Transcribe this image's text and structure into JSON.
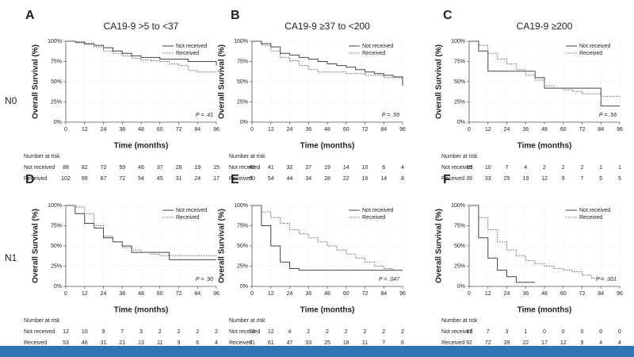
{
  "row_labels": [
    "N0",
    "N1"
  ],
  "chart_data": [
    {
      "type": "line",
      "step": true,
      "panel": "A",
      "title": "CA19-9 >5 to <37",
      "x_label": "Time (months)",
      "y_label": "Overall Survival (%)",
      "annotation": "P = .41",
      "grid": true,
      "legend": "upper right",
      "x": [
        0,
        6,
        12,
        18,
        24,
        30,
        36,
        42,
        48,
        54,
        60,
        66,
        72,
        78,
        84,
        90,
        96
      ],
      "series": [
        {
          "name": "Not received",
          "color": "#444444",
          "dash": "solid",
          "values": [
            100,
            99,
            97,
            95,
            92,
            88,
            85,
            82,
            80,
            80,
            78,
            78,
            78,
            75,
            75,
            75,
            70
          ]
        },
        {
          "name": "Received",
          "color": "#666666",
          "dash": "dotted",
          "values": [
            100,
            98,
            96,
            93,
            88,
            85,
            82,
            79,
            77,
            76,
            75,
            72,
            70,
            64,
            62,
            62,
            62
          ]
        }
      ],
      "xlim": [
        0,
        96
      ],
      "xticks": [
        0,
        12,
        24,
        36,
        48,
        60,
        72,
        84,
        96
      ],
      "ylim": [
        0,
        100
      ],
      "yticks": [
        {
          "value": 0,
          "label": "0%"
        },
        {
          "value": 25,
          "label": "25%"
        },
        {
          "value": 50,
          "label": "50%"
        },
        {
          "value": 75,
          "label": "75%"
        },
        {
          "value": 100,
          "label": "100%"
        }
      ],
      "risk_table": {
        "title": "Number at risk",
        "rows": [
          {
            "name": "Not received",
            "values": [
              88,
              82,
              72,
              59,
              46,
              37,
              28,
              19,
              15
            ]
          },
          {
            "name": "Received",
            "values": [
              102,
              99,
              87,
              72,
              54,
              45,
              31,
              24,
              17
            ]
          }
        ]
      }
    },
    {
      "type": "line",
      "step": true,
      "panel": "B",
      "title": "CA19-9 ≥37 to <200",
      "x_label": "Time (months)",
      "y_label": "Overall Survival (%)",
      "annotation": "P = .59",
      "grid": true,
      "legend": "upper right",
      "x": [
        0,
        6,
        12,
        18,
        24,
        30,
        36,
        42,
        48,
        54,
        60,
        66,
        72,
        78,
        84,
        90,
        96
      ],
      "series": [
        {
          "name": "Not received",
          "color": "#444444",
          "dash": "solid",
          "values": [
            100,
            97,
            93,
            85,
            83,
            80,
            78,
            75,
            72,
            70,
            68,
            65,
            62,
            60,
            58,
            56,
            45
          ]
        },
        {
          "name": "Received",
          "color": "#666666",
          "dash": "dotted",
          "values": [
            100,
            95,
            88,
            80,
            76,
            70,
            65,
            62,
            62,
            62,
            60,
            60,
            58,
            58,
            55,
            55,
            55
          ]
        }
      ],
      "xlim": [
        0,
        96
      ],
      "xticks": [
        0,
        12,
        24,
        36,
        48,
        60,
        72,
        84,
        96
      ],
      "ylim": [
        0,
        100
      ],
      "yticks": [
        {
          "value": 0,
          "label": "0%"
        },
        {
          "value": 25,
          "label": "25%"
        },
        {
          "value": 50,
          "label": "50%"
        },
        {
          "value": 75,
          "label": "75%"
        },
        {
          "value": 100,
          "label": "100%"
        }
      ],
      "risk_table": {
        "title": "Number at risk",
        "rows": [
          {
            "name": "Not received",
            "values": [
              45,
              41,
              32,
              27,
              19,
              14,
              10,
              6,
              4
            ]
          },
          {
            "name": "Received",
            "values": [
              60,
              54,
              44,
              34,
              28,
              22,
              16,
              14,
              8
            ]
          }
        ]
      }
    },
    {
      "type": "line",
      "step": true,
      "panel": "C",
      "title": "CA19-9 ≥200",
      "x_label": "Time (months)",
      "y_label": "Overall Survival (%)",
      "annotation": "P = .56",
      "grid": true,
      "legend": "upper right",
      "x": [
        0,
        6,
        12,
        18,
        24,
        30,
        36,
        42,
        48,
        54,
        60,
        66,
        72,
        78,
        84,
        90,
        96
      ],
      "series": [
        {
          "name": "Not received",
          "color": "#444444",
          "dash": "solid",
          "values": [
            100,
            88,
            63,
            63,
            63,
            63,
            63,
            55,
            42,
            42,
            42,
            42,
            42,
            42,
            20,
            20,
            20
          ]
        },
        {
          "name": "Received",
          "color": "#666666",
          "dash": "dotted",
          "values": [
            100,
            95,
            85,
            78,
            72,
            65,
            58,
            52,
            45,
            42,
            40,
            38,
            35,
            35,
            32,
            32,
            32
          ]
        }
      ],
      "xlim": [
        0,
        96
      ],
      "xticks": [
        0,
        12,
        24,
        36,
        48,
        60,
        72,
        84,
        96
      ],
      "ylim": [
        0,
        100
      ],
      "yticks": [
        {
          "value": 0,
          "label": "0%"
        },
        {
          "value": 25,
          "label": "25%"
        },
        {
          "value": 50,
          "label": "50%"
        },
        {
          "value": 75,
          "label": "75%"
        },
        {
          "value": 100,
          "label": "100%"
        }
      ],
      "risk_table": {
        "title": "Number at risk",
        "rows": [
          {
            "name": "Not received",
            "values": [
              15,
              10,
              7,
              4,
              2,
              2,
              2,
              1,
              1
            ]
          },
          {
            "name": "Received",
            "values": [
              39,
              33,
              25,
              19,
              12,
              9,
              7,
              5,
              5
            ]
          }
        ]
      }
    },
    {
      "type": "line",
      "step": true,
      "panel": "D",
      "x_label": "Time (months)",
      "y_label": "Overall Survival (%)",
      "annotation": "P = .90",
      "grid": true,
      "legend": "upper right",
      "x": [
        0,
        6,
        12,
        18,
        24,
        30,
        36,
        42,
        48,
        54,
        60,
        66,
        72,
        78,
        84,
        90,
        96
      ],
      "series": [
        {
          "name": "Not received",
          "color": "#444444",
          "dash": "solid",
          "values": [
            100,
            90,
            78,
            72,
            60,
            55,
            50,
            42,
            42,
            42,
            42,
            33,
            33,
            33,
            33,
            33,
            33
          ]
        },
        {
          "name": "Received",
          "color": "#666666",
          "dash": "dotted",
          "values": [
            100,
            98,
            90,
            75,
            62,
            55,
            48,
            45,
            42,
            40,
            38,
            38,
            38,
            38,
            38,
            38,
            38
          ]
        }
      ],
      "xlim": [
        0,
        96
      ],
      "xticks": [
        0,
        12,
        24,
        36,
        48,
        60,
        72,
        84,
        96
      ],
      "ylim": [
        0,
        100
      ],
      "yticks": [
        {
          "value": 0,
          "label": "0%"
        },
        {
          "value": 25,
          "label": "25%"
        },
        {
          "value": 50,
          "label": "50%"
        },
        {
          "value": 75,
          "label": "75%"
        },
        {
          "value": 100,
          "label": "100%"
        }
      ],
      "risk_table": {
        "title": "Number at risk",
        "rows": [
          {
            "name": "Not received",
            "values": [
              12,
              10,
              9,
              7,
              3,
              2,
              2,
              2,
              2
            ]
          },
          {
            "name": "Received",
            "values": [
              53,
              46,
              31,
              21,
              13,
              11,
              9,
              6,
              4
            ]
          }
        ]
      }
    },
    {
      "type": "line",
      "step": true,
      "panel": "E",
      "x_label": "Time (months)",
      "y_label": "Overall Survival (%)",
      "annotation": "P = .047",
      "grid": true,
      "legend": "upper right",
      "x": [
        0,
        6,
        12,
        18,
        24,
        30,
        36,
        42,
        48,
        54,
        60,
        66,
        72,
        78,
        84,
        90,
        96
      ],
      "series": [
        {
          "name": "Not received",
          "color": "#444444",
          "dash": "solid",
          "values": [
            100,
            75,
            50,
            30,
            22,
            20,
            20,
            20,
            20,
            20,
            20,
            20,
            20,
            20,
            20,
            20,
            20
          ]
        },
        {
          "name": "Received",
          "color": "#666666",
          "dash": "dotted",
          "values": [
            100,
            92,
            85,
            78,
            70,
            65,
            60,
            55,
            50,
            45,
            40,
            35,
            30,
            25,
            22,
            20,
            20
          ]
        }
      ],
      "xlim": [
        0,
        96
      ],
      "xticks": [
        0,
        12,
        24,
        36,
        48,
        60,
        72,
        84,
        96
      ],
      "ylim": [
        0,
        100
      ],
      "yticks": [
        {
          "value": 0,
          "label": "0%"
        },
        {
          "value": 25,
          "label": "25%"
        },
        {
          "value": 50,
          "label": "50%"
        },
        {
          "value": 75,
          "label": "75%"
        },
        {
          "value": 100,
          "label": "100%"
        }
      ],
      "risk_table": {
        "title": "Number at risk",
        "rows": [
          {
            "name": "Not received",
            "values": [
              19,
              12,
              4,
              2,
              2,
              2,
              2,
              2,
              2
            ]
          },
          {
            "name": "Received",
            "values": [
              71,
              61,
              47,
              33,
              25,
              18,
              11,
              7,
              6
            ]
          }
        ]
      }
    },
    {
      "type": "line",
      "step": true,
      "panel": "F",
      "x_label": "Time (months)",
      "y_label": "Overall Survival (%)",
      "annotation": "P = .001",
      "grid": true,
      "legend": "upper right",
      "x": [
        0,
        6,
        12,
        18,
        24,
        30,
        36,
        42,
        48,
        54,
        60,
        66,
        72,
        78,
        84,
        90,
        96
      ],
      "series": [
        {
          "name": "Not received",
          "color": "#444444",
          "dash": "solid",
          "values": [
            100,
            60,
            35,
            20,
            12,
            5,
            5,
            5,
            null,
            null,
            null,
            null,
            null,
            null,
            null,
            null,
            null
          ]
        },
        {
          "name": "Received",
          "color": "#666666",
          "dash": "dotted",
          "values": [
            100,
            85,
            70,
            55,
            45,
            38,
            32,
            28,
            25,
            22,
            20,
            18,
            14,
            10,
            8,
            null,
            null
          ]
        }
      ],
      "xlim": [
        0,
        96
      ],
      "xticks": [
        0,
        12,
        24,
        36,
        48,
        60,
        72,
        84,
        96
      ],
      "ylim": [
        0,
        100
      ],
      "yticks": [
        {
          "value": 0,
          "label": "0%"
        },
        {
          "value": 25,
          "label": "25%"
        },
        {
          "value": 50,
          "label": "50%"
        },
        {
          "value": 75,
          "label": "75%"
        },
        {
          "value": 100,
          "label": "100%"
        }
      ],
      "risk_table": {
        "title": "Number at risk",
        "rows": [
          {
            "name": "Not received",
            "values": [
              17,
              7,
              3,
              1,
              0,
              0,
              0,
              0,
              0
            ]
          },
          {
            "name": "Received",
            "values": [
              92,
              72,
              39,
              22,
              17,
              12,
              9,
              4,
              4
            ]
          }
        ]
      }
    }
  ]
}
